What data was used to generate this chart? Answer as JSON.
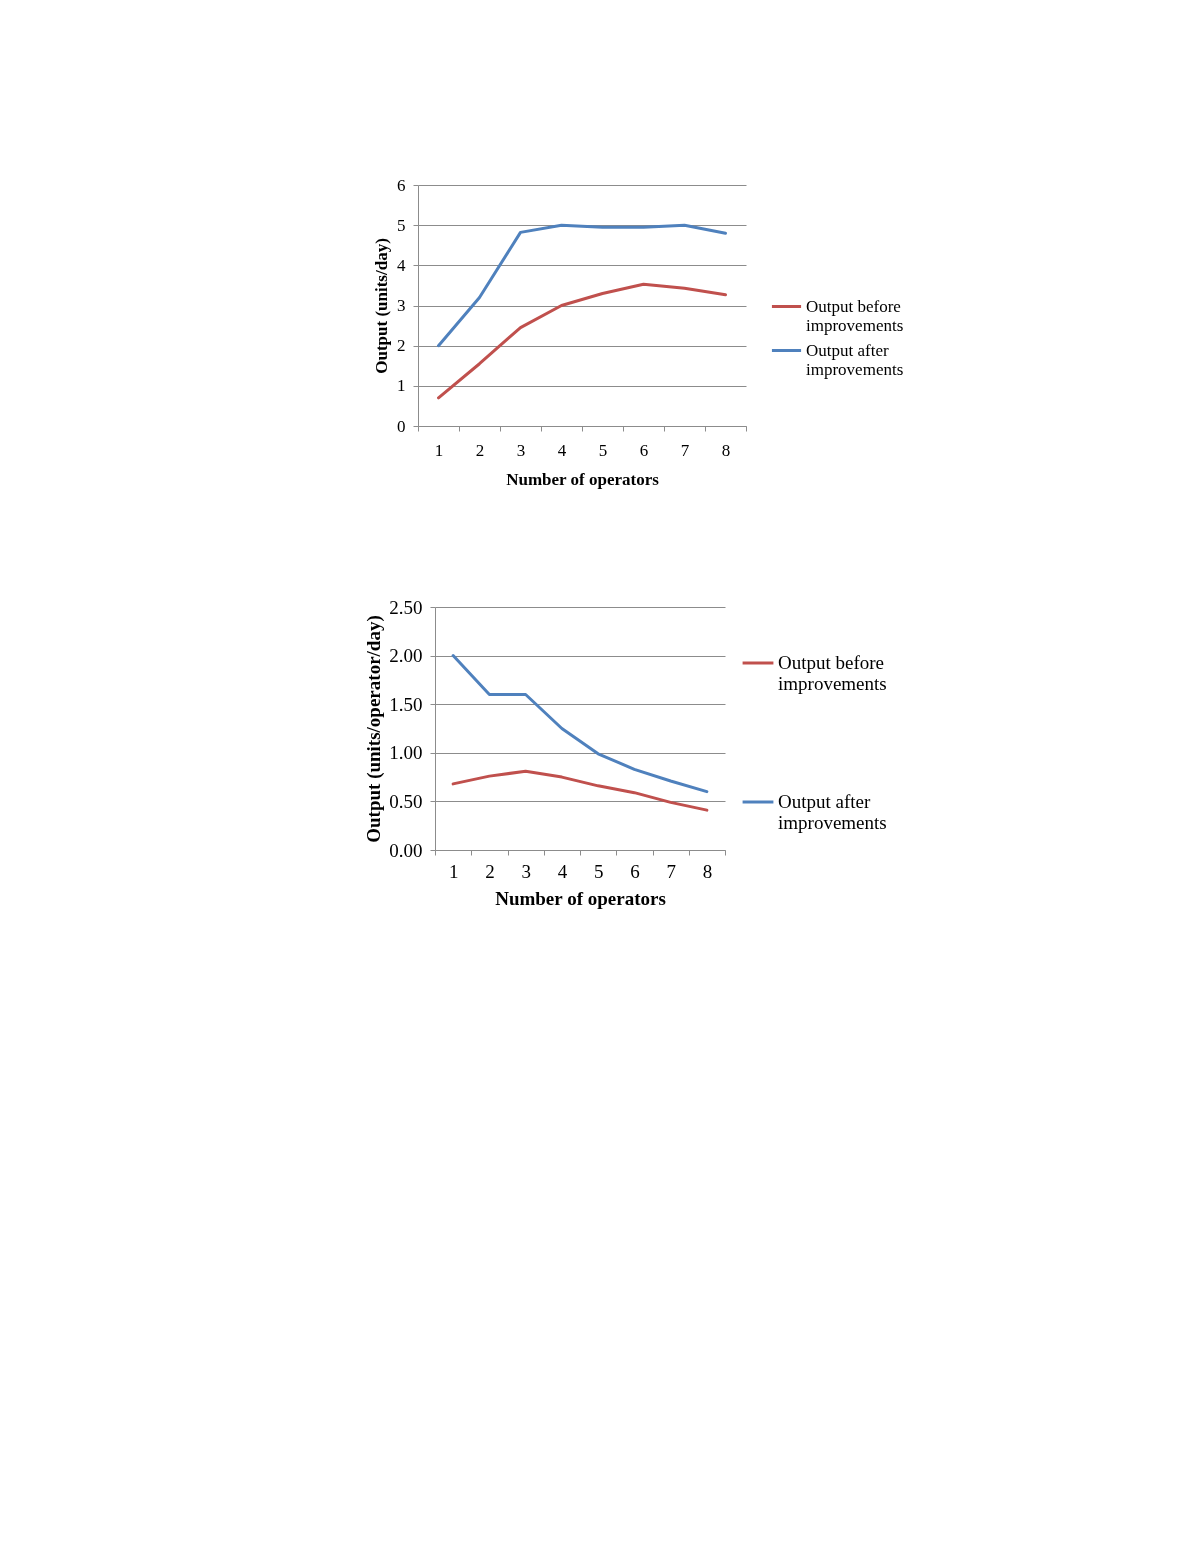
{
  "chart_data": [
    {
      "type": "line",
      "xlabel": "Number of operators",
      "ylabel": "Output (units/day)",
      "categories": [
        "1",
        "2",
        "3",
        "4",
        "5",
        "6",
        "7",
        "8"
      ],
      "series": [
        {
          "name": "Output before improvements",
          "color": "#c0504d",
          "values": [
            0.7,
            1.55,
            2.45,
            3.0,
            3.3,
            3.53,
            3.43,
            3.27
          ]
        },
        {
          "name": "Output after improvements",
          "color": "#4f81bd",
          "values": [
            2.0,
            3.2,
            4.82,
            5.0,
            4.95,
            4.95,
            5.0,
            4.8
          ]
        }
      ],
      "ylim": [
        0,
        6
      ],
      "yticks": [
        0,
        1,
        2,
        3,
        4,
        5,
        6
      ],
      "grid": "y",
      "legend": "right"
    },
    {
      "type": "line",
      "xlabel": "Number of operators",
      "ylabel": "Output (units/operator/day)",
      "categories": [
        "1",
        "2",
        "3",
        "4",
        "5",
        "6",
        "7",
        "8"
      ],
      "series": [
        {
          "name": "Output before improvements",
          "color": "#c0504d",
          "values": [
            0.68,
            0.76,
            0.81,
            0.75,
            0.66,
            0.59,
            0.49,
            0.41
          ]
        },
        {
          "name": "Output after improvements",
          "color": "#4f81bd",
          "values": [
            2.0,
            1.6,
            1.6,
            1.25,
            0.99,
            0.83,
            0.71,
            0.6
          ]
        }
      ],
      "ylim": [
        0,
        2.5
      ],
      "yticks": [
        {
          "value": 0,
          "label": "0.00"
        },
        {
          "value": 0.5,
          "label": "0.50"
        },
        {
          "value": 1,
          "label": "1.00"
        },
        {
          "value": 1.5,
          "label": "1.50"
        },
        {
          "value": 2,
          "label": "2.00"
        },
        {
          "value": 2.5,
          "label": "2.50"
        }
      ],
      "grid": "y",
      "legend": "right"
    }
  ]
}
